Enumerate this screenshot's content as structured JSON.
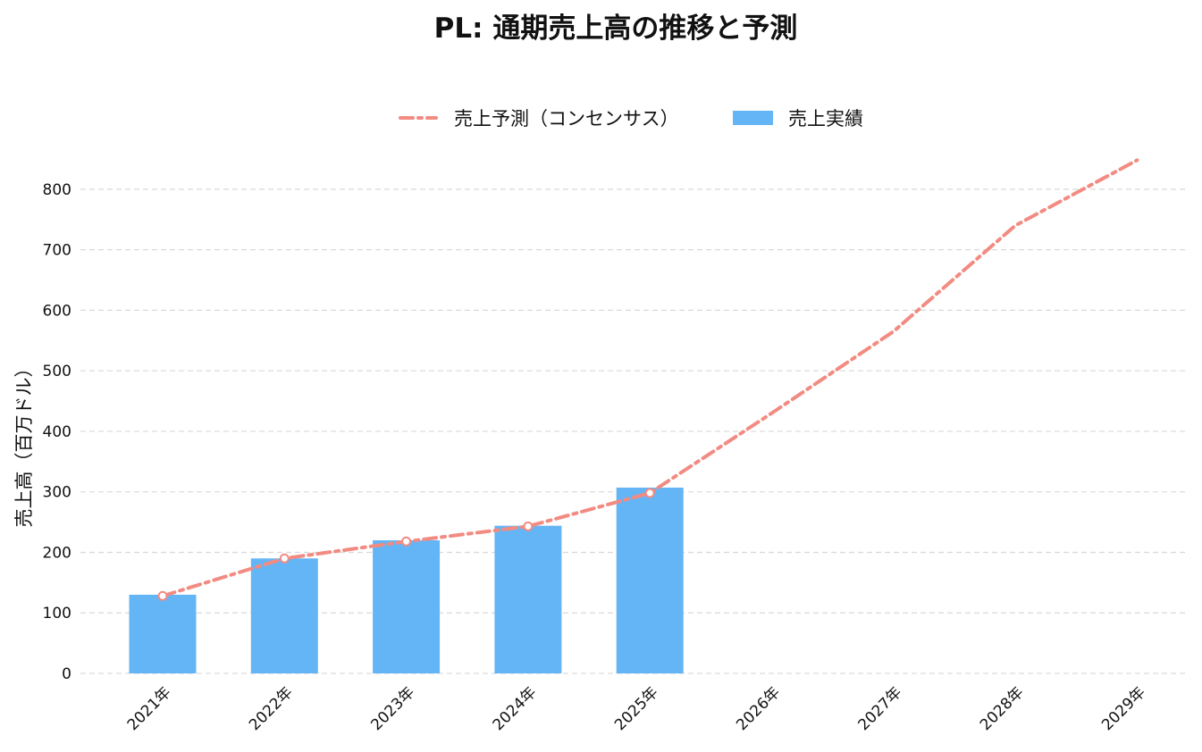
{
  "chart_data": {
    "type": "bar",
    "title": "PL: 通期売上高の推移と予測",
    "xlabel": "",
    "ylabel": "売上高（百万ドル）",
    "ylim": [
      0,
      850
    ],
    "yticks": [
      0,
      100,
      200,
      300,
      400,
      500,
      600,
      700,
      800
    ],
    "grid": true,
    "legend_position": "top-center",
    "categories": [
      "2021年",
      "2022年",
      "2023年",
      "2024年",
      "2025年",
      "2026年",
      "2027年",
      "2028年",
      "2029年"
    ],
    "series": [
      {
        "name": "売上実績",
        "type": "bar",
        "color": "#64b5f6",
        "values": [
          130,
          190,
          220,
          244,
          307,
          null,
          null,
          null,
          null
        ]
      },
      {
        "name": "売上予測（コンセンサス）",
        "type": "line",
        "style": "dashdot",
        "color": "#f28b82",
        "values": [
          128,
          190,
          218,
          243,
          298,
          430,
          565,
          740,
          848
        ]
      }
    ]
  }
}
